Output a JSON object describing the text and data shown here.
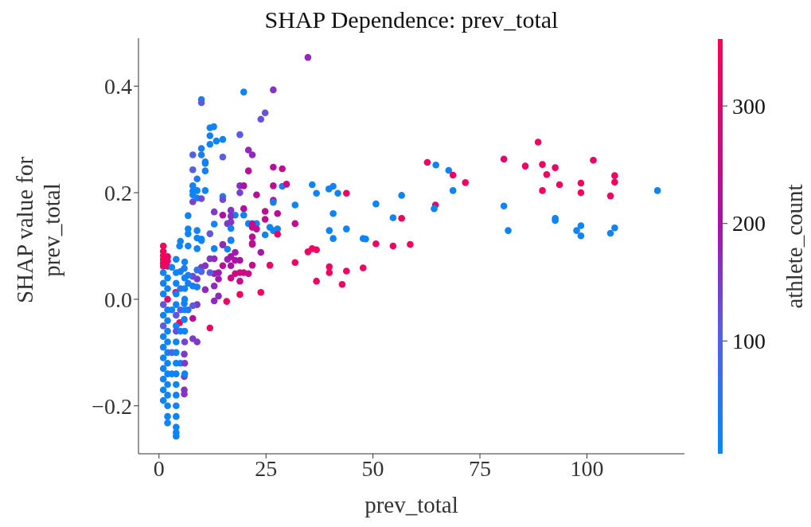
{
  "chart_data": {
    "type": "scatter",
    "title": "SHAP Dependence: prev_total",
    "xlabel": "prev_total",
    "ylabel": "SHAP value for prev_total",
    "clabel": "athlete_count",
    "marker": "circle",
    "xlim": [
      -4.8,
      122.8
    ],
    "xticks": [
      0,
      25,
      50,
      75,
      100
    ],
    "ylim": [
      -0.29,
      0.49
    ],
    "yticks": [
      {
        "value": -0.2,
        "label": "−0.2"
      },
      {
        "value": 0,
        "label": "0.0"
      },
      {
        "value": 0.2,
        "label": "0.2"
      },
      {
        "value": 0.4,
        "label": "0.4"
      }
    ],
    "clim": [
      4,
      357
    ],
    "cticks": [
      100,
      200,
      300
    ],
    "x": [
      34.8,
      19.8,
      26.7,
      9.9,
      9.9,
      24.8,
      23.8,
      11.9,
      12.8,
      11.9,
      18.9,
      14.9,
      11.9,
      13.4,
      9.9,
      7.9,
      9.9,
      14.9,
      10.8,
      10.8,
      20.9,
      21.8,
      7.9,
      10.8,
      20.9,
      26.7,
      28.8,
      8.9,
      7.9,
      7.9,
      8.9,
      7.9,
      8.9,
      10.8,
      9.9,
      7.9,
      18.9,
      19.8,
      18.9,
      22.8,
      26.7,
      28.8,
      29.8,
      26.7,
      26.7,
      14.9,
      14.9,
      35.8,
      36.8,
      39.7,
      40.7,
      41.8,
      43.8,
      31.8,
      40.7,
      12.9,
      16.8,
      17.8,
      19.8,
      19.8,
      14.9,
      16.8,
      16.0,
      16.8,
      24.8,
      24.8,
      27.7,
      20.9,
      21.8,
      22.8,
      21.8,
      21.8,
      22.8,
      25.9,
      26.7,
      27.7,
      27.7,
      31.8,
      12.9,
      16.8,
      6.8,
      6.8,
      6.8,
      8.9,
      8.9,
      9.9,
      5.0,
      11.9,
      39.8,
      43.8,
      40.7,
      47.7,
      24.8,
      21.8,
      21.8,
      14.9,
      16.8,
      62.7,
      64.7,
      67.7,
      68.7,
      71.6,
      68.7,
      64.6,
      64.3,
      50.7,
      56.7,
      54.7,
      56.7,
      48.3,
      50.7,
      54.7,
      58.7,
      47.7,
      80.6,
      88.6,
      85.6,
      89.6,
      92.6,
      90.6,
      93.6,
      89.6,
      98.6,
      98.6,
      101.5,
      106.5,
      106.5,
      105.5,
      116.5,
      80.6,
      81.6,
      92.6,
      92.6,
      98.6,
      97.6,
      98.6,
      106.5,
      105.5,
      34.8,
      35.8,
      36.8,
      31.8,
      39.8,
      39.8,
      43.8,
      36.8,
      42.8,
      25.9,
      23.8,
      18.9,
      15.8,
      11.9,
      21.8,
      23.8,
      21.8,
      3.9,
      4.8,
      8.9,
      7.9,
      7.9,
      10.8,
      12.9,
      12.9,
      13.9,
      8.9,
      8.9,
      7.9,
      9.9,
      10.8,
      11.9,
      12.9,
      12.9,
      13.9,
      13.9,
      14.9,
      16.0,
      16.8,
      17.8,
      18.9,
      17.8,
      16.8,
      14.9,
      16.8,
      17.8,
      18.9,
      19.8,
      20.9,
      18.9,
      11.9,
      8.9,
      9.9,
      5.9,
      5.0,
      6.8,
      8.9,
      7.9,
      6.8,
      5.9,
      5.9,
      6.8,
      7.9,
      5.9,
      5.9,
      5.9,
      5.9,
      4.8,
      6.8,
      8.9,
      9.9,
      12.9,
      16.0,
      16.8,
      1,
      1,
      1,
      1,
      1,
      1,
      1,
      1,
      1,
      1,
      1,
      1,
      1,
      1,
      1,
      1,
      1,
      1,
      1,
      2,
      2,
      2,
      2,
      2,
      2,
      2,
      2,
      2,
      2,
      2,
      2,
      2,
      2,
      2,
      2,
      2,
      2,
      3,
      3,
      3,
      3,
      4,
      4,
      4,
      4,
      4,
      4,
      4,
      4,
      4,
      4,
      4,
      4,
      4,
      4,
      4,
      4,
      4,
      4,
      4,
      5,
      5,
      5,
      5,
      6,
      6,
      6,
      6,
      6,
      6,
      6,
      6,
      6
    ],
    "values": [
      0.454,
      0.389,
      0.393,
      0.375,
      0.369,
      0.35,
      0.338,
      0.322,
      0.324,
      0.307,
      0.309,
      0.3,
      0.291,
      0.297,
      0.283,
      0.271,
      0.271,
      0.267,
      0.258,
      0.255,
      0.28,
      0.271,
      0.243,
      0.241,
      0.241,
      0.248,
      0.245,
      0.226,
      0.213,
      0.203,
      0.204,
      0.196,
      0.19,
      0.204,
      0.189,
      0.183,
      0.213,
      0.213,
      0.2,
      0.196,
      0.213,
      0.212,
      0.216,
      0.186,
      0.182,
      0.193,
      0.187,
      0.215,
      0.199,
      0.207,
      0.212,
      0.199,
      0.199,
      0.177,
      0.161,
      0.164,
      0.167,
      0.158,
      0.17,
      0.158,
      0.158,
      0.156,
      0.142,
      0.145,
      0.165,
      0.15,
      0.161,
      0.142,
      0.142,
      0.142,
      0.141,
      0.135,
      0.132,
      0.135,
      0.129,
      0.132,
      0.122,
      0.142,
      0.141,
      0.133,
      0.157,
      0.132,
      0.123,
      0.129,
      0.115,
      0.113,
      0.109,
      0.123,
      0.129,
      0.132,
      0.114,
      0.114,
      0.121,
      0.117,
      0.103,
      0.102,
      0.111,
      0.257,
      0.252,
      0.242,
      0.233,
      0.219,
      0.204,
      0.177,
      0.17,
      0.179,
      0.195,
      0.153,
      0.152,
      0.113,
      0.104,
      0.1,
      0.103,
      0.059,
      0.263,
      0.295,
      0.25,
      0.253,
      0.247,
      0.234,
      0.215,
      0.204,
      0.218,
      0.2,
      0.261,
      0.232,
      0.22,
      0.194,
      0.204,
      0.175,
      0.129,
      0.152,
      0.148,
      0.138,
      0.129,
      0.119,
      0.134,
      0.124,
      0.089,
      0.095,
      0.093,
      0.069,
      0.061,
      0.05,
      0.053,
      0.034,
      0.028,
      0.064,
      0.013,
      0.009,
      -0.004,
      -0.054,
      0.064,
      0.088,
      0.105,
      0.013,
      -0.044,
      -0.08,
      -0.074,
      -0.036,
      0.018,
      0.025,
      -0.003,
      0.006,
      -0.01,
      0.038,
      0.043,
      0.06,
      0.063,
      0.076,
      0.076,
      0.048,
      0.05,
      0.038,
      0.103,
      0.075,
      0.08,
      0.073,
      0.073,
      0.088,
      0.063,
      0.063,
      0.04,
      0.048,
      0.05,
      0.05,
      0.048,
      0.034,
      0.05,
      0.055,
      0.052,
      0.058,
      0.052,
      0.045,
      0.023,
      0.025,
      0.03,
      -0.038,
      -0.008,
      -0.02,
      -0.012,
      -0.103,
      -0.145,
      -0.17,
      -0.178,
      0.1,
      0.1,
      0.095,
      0.11,
      0.095,
      0.094,
      0.11,
      0.1,
      0.09,
      0.082,
      0.075,
      0.068,
      0.062,
      0.05,
      0.03,
      0.01,
      -0.01,
      -0.03,
      -0.05,
      -0.07,
      -0.09,
      -0.11,
      -0.13,
      -0.15,
      -0.17,
      -0.19,
      0.08,
      0.072,
      0.062,
      0.04,
      0.02,
      0.0,
      -0.02,
      -0.04,
      -0.06,
      -0.08,
      -0.1,
      -0.12,
      -0.14,
      -0.16,
      -0.18,
      -0.2,
      -0.22,
      -0.232,
      0.06,
      -0.02,
      -0.1,
      -0.14,
      0.075,
      0.05,
      0.03,
      0.01,
      -0.01,
      -0.03,
      -0.05,
      -0.06,
      -0.08,
      -0.1,
      -0.12,
      -0.14,
      -0.16,
      -0.18,
      -0.2,
      -0.22,
      -0.24,
      -0.25,
      -0.257,
      0.02,
      -0.06,
      -0.12,
      -0.02,
      0.07,
      0.04,
      0.02,
      0.0,
      -0.02,
      -0.06,
      -0.08,
      -0.12,
      -0.14
    ],
    "cvalues": [
      170,
      20,
      160,
      30,
      110,
      120,
      120,
      20,
      20,
      30,
      110,
      20,
      20,
      20,
      30,
      100,
      40,
      110,
      30,
      30,
      170,
      170,
      100,
      30,
      230,
      230,
      250,
      40,
      20,
      20,
      20,
      20,
      20,
      20,
      130,
      140,
      160,
      200,
      140,
      230,
      240,
      30,
      260,
      230,
      30,
      40,
      130,
      20,
      20,
      20,
      20,
      20,
      320,
      20,
      20,
      150,
      160,
      30,
      220,
      30,
      210,
      160,
      150,
      160,
      240,
      240,
      240,
      20,
      20,
      20,
      250,
      250,
      250,
      20,
      20,
      20,
      320,
      240,
      20,
      20,
      20,
      20,
      20,
      20,
      20,
      20,
      20,
      120,
      20,
      20,
      20,
      20,
      20,
      230,
      230,
      170,
      170,
      330,
      20,
      20,
      330,
      330,
      20,
      280,
      20,
      20,
      20,
      20,
      330,
      20,
      330,
      330,
      330,
      330,
      300,
      330,
      330,
      330,
      320,
      330,
      330,
      330,
      330,
      330,
      320,
      330,
      330,
      330,
      20,
      20,
      20,
      20,
      20,
      20,
      20,
      20,
      20,
      20,
      330,
      330,
      330,
      330,
      330,
      330,
      330,
      330,
      330,
      330,
      330,
      330,
      330,
      330,
      250,
      190,
      240,
      330,
      330,
      150,
      150,
      220,
      170,
      170,
      170,
      170,
      150,
      150,
      130,
      150,
      160,
      150,
      170,
      180,
      190,
      190,
      170,
      180,
      200,
      210,
      200,
      190,
      200,
      230,
      260,
      270,
      270,
      270,
      260,
      250,
      110,
      60,
      90,
      40,
      30,
      40,
      30,
      30,
      30,
      30,
      30,
      60,
      110,
      150,
      150,
      160,
      160,
      20,
      20,
      20,
      20,
      20,
      20,
      20,
      340,
      340,
      340,
      340,
      340,
      330,
      20,
      20,
      20,
      120,
      20,
      110,
      20,
      20,
      20,
      20,
      20,
      20,
      20,
      320,
      320,
      320,
      20,
      20,
      320,
      20,
      20,
      20,
      20,
      20,
      20,
      20,
      20,
      20,
      20,
      20,
      20,
      20,
      20,
      100,
      20,
      20,
      20,
      20,
      20,
      20,
      120,
      20,
      130,
      20,
      20,
      20,
      20,
      20,
      20,
      20,
      20,
      20,
      20,
      20,
      60,
      20,
      20,
      110,
      20,
      20,
      20,
      20,
      20,
      20,
      140,
      150,
      20
    ]
  }
}
